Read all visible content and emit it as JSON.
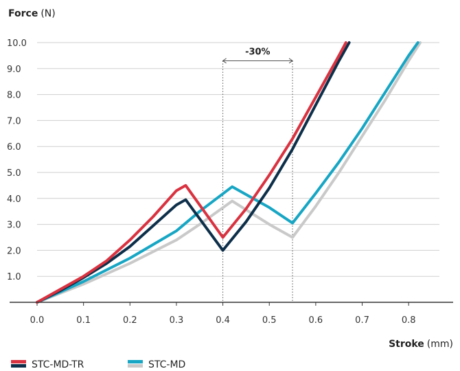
{
  "chart_data": {
    "type": "line",
    "ylabel_bold": "Force",
    "ylabel_unit": "(N)",
    "xlabel_bold": "Stroke",
    "xlabel_unit": "(mm)",
    "xlim": [
      0,
      0.85
    ],
    "ylim": [
      0,
      10
    ],
    "xticks": [
      0.0,
      0.1,
      0.2,
      0.3,
      0.4,
      0.5,
      0.6,
      0.7,
      0.8
    ],
    "xtick_labels": [
      "0.0",
      "0.1",
      "0.2",
      "0.3",
      "0.4",
      "0.5",
      "0.6",
      "0.7",
      "0.8"
    ],
    "yticks": [
      1,
      2,
      3,
      4,
      5,
      6,
      7,
      8,
      9,
      10
    ],
    "ytick_labels": [
      "1.0",
      "2.0",
      "3.0",
      "4.0",
      "5.0",
      "6.0",
      "7.0",
      "8.0",
      "9.0",
      "10.0"
    ],
    "grid": true,
    "annotation": {
      "text": "-30%",
      "x_from": 0.4,
      "x_to": 0.55,
      "y": 9.3
    },
    "series": [
      {
        "legend_group": "STC-MD-TR",
        "color": "#d93240",
        "x": [
          0,
          0.05,
          0.1,
          0.15,
          0.2,
          0.25,
          0.3,
          0.32,
          0.4,
          0.45,
          0.5,
          0.55,
          0.6,
          0.65,
          0.665
        ],
        "y": [
          0,
          0.5,
          1.0,
          1.6,
          2.4,
          3.3,
          4.3,
          4.5,
          2.5,
          3.6,
          4.9,
          6.3,
          7.9,
          9.5,
          10.0
        ]
      },
      {
        "legend_group": "STC-MD-TR",
        "color": "#0d2f4a",
        "x": [
          0,
          0.05,
          0.1,
          0.15,
          0.2,
          0.25,
          0.3,
          0.32,
          0.4,
          0.45,
          0.5,
          0.55,
          0.6,
          0.65,
          0.672
        ],
        "y": [
          0,
          0.45,
          0.95,
          1.5,
          2.15,
          2.95,
          3.75,
          3.95,
          2.0,
          3.1,
          4.4,
          5.9,
          7.6,
          9.3,
          10.0
        ]
      },
      {
        "legend_group": "STC-MD",
        "color": "#17a6c4",
        "x": [
          0,
          0.1,
          0.2,
          0.3,
          0.35,
          0.42,
          0.5,
          0.55,
          0.6,
          0.65,
          0.7,
          0.75,
          0.8,
          0.82
        ],
        "y": [
          0,
          0.8,
          1.7,
          2.75,
          3.5,
          4.45,
          3.65,
          3.05,
          4.2,
          5.4,
          6.7,
          8.1,
          9.5,
          10.0
        ]
      },
      {
        "legend_group": "STC-MD",
        "color": "#c9c9c9",
        "x": [
          0,
          0.1,
          0.2,
          0.3,
          0.35,
          0.42,
          0.5,
          0.55,
          0.6,
          0.65,
          0.7,
          0.75,
          0.8,
          0.825
        ],
        "y": [
          0,
          0.7,
          1.5,
          2.4,
          3.0,
          3.9,
          3.0,
          2.5,
          3.7,
          5.0,
          6.4,
          7.8,
          9.3,
          10.0
        ]
      }
    ],
    "legend": {
      "position": "bottom-left",
      "entries": [
        {
          "label": "STC-MD-TR",
          "colors": [
            "#d93240",
            "#0d2f4a"
          ]
        },
        {
          "label": "STC-MD",
          "colors": [
            "#17a6c4",
            "#c9c9c9"
          ]
        }
      ]
    }
  }
}
